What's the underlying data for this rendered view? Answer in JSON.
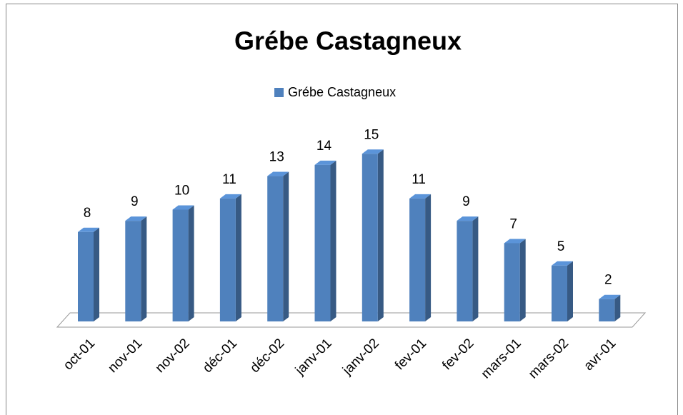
{
  "chart_data": {
    "type": "bar3d",
    "title": "Grébe Castagneux",
    "categories": [
      "oct-01",
      "nov-01",
      "nov-02",
      "déc-01",
      "déc-02",
      "janv-01",
      "janv-02",
      "fev-01",
      "fev-02",
      "mars-01",
      "mars-02",
      "avr-01"
    ],
    "series": [
      {
        "name": "Grébe Castagneux",
        "color": "#4f81bd",
        "values": [
          8,
          9,
          10,
          11,
          13,
          14,
          15,
          11,
          9,
          7,
          5,
          2
        ]
      }
    ],
    "legend": "top"
  }
}
